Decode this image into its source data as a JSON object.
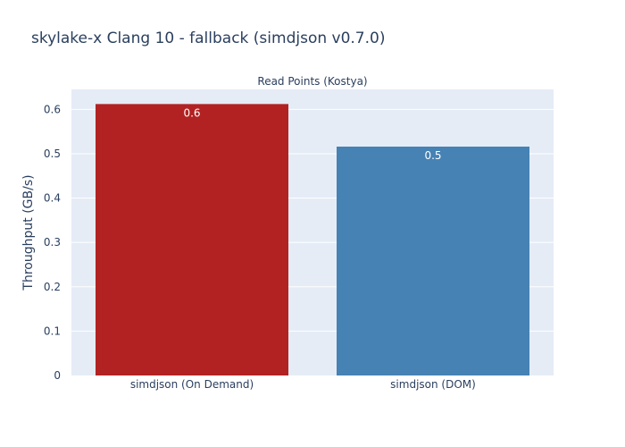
{
  "title": "skylake-x Clang 10 - fallback (simdjson v0.7.0)",
  "chart_data": {
    "type": "bar",
    "subtitle": "Read Points (Kostya)",
    "ylabel": "Throughput (GB/s)",
    "xlabel": "",
    "categories": [
      "simdjson (On Demand)",
      "simdjson (DOM)"
    ],
    "values": [
      0.612,
      0.516
    ],
    "data_labels": [
      "0.6",
      "0.5"
    ],
    "colors": [
      "#b22222",
      "#4682b4"
    ],
    "ylim": [
      0,
      0.645
    ],
    "yticks": [
      0,
      0.1,
      0.2,
      0.3,
      0.4,
      0.5,
      0.6
    ],
    "ytick_labels": [
      "0",
      "0.1",
      "0.2",
      "0.3",
      "0.4",
      "0.5",
      "0.6"
    ],
    "grid": true,
    "legend": false,
    "plot_background": "#e5ecf6"
  }
}
